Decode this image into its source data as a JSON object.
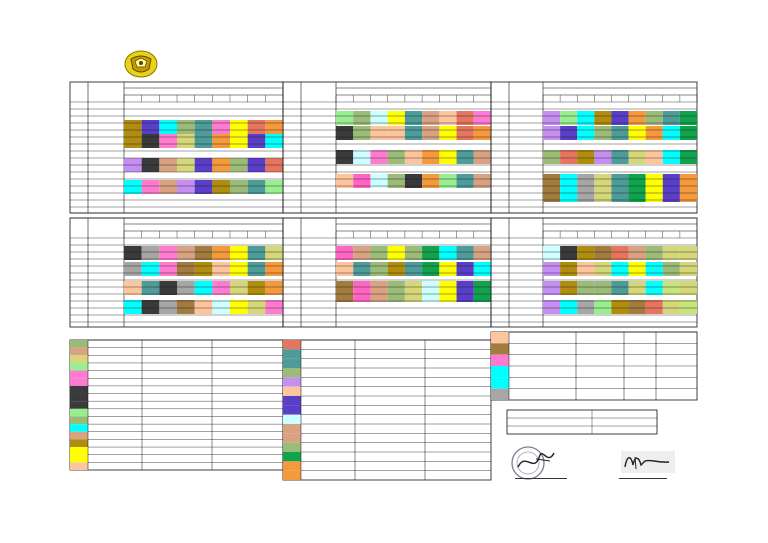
{
  "document": {
    "type": "lesson-schedule-sheet",
    "emblem": "crest-emblem",
    "signatures": [
      "signature-left",
      "signature-right"
    ]
  },
  "colors": {
    "olive": "#b08c0f",
    "purple": "#5a3ec8",
    "cyan": "#00ffff",
    "sage": "#9bbb78",
    "teal": "#4e9c9a",
    "pink": "#ff7bd0",
    "yellow": "#ffff00",
    "salmon": "#e67560",
    "orange": "#f59a3c",
    "lavender": "#c48ff0",
    "dark": "#3a3a3a",
    "tan": "#d9a383",
    "lightgreen": "#99ef90",
    "peach": "#fcc59d",
    "green": "#11a24e",
    "khaki": "#d6d67a",
    "grey": "#a6a6a6",
    "palecyan": "#ccffff",
    "magenta": "#ff66c4",
    "brown": "#a27b3e",
    "verydarkgrey": "#2e2e2e",
    "lime": "#c7e37b"
  }
}
